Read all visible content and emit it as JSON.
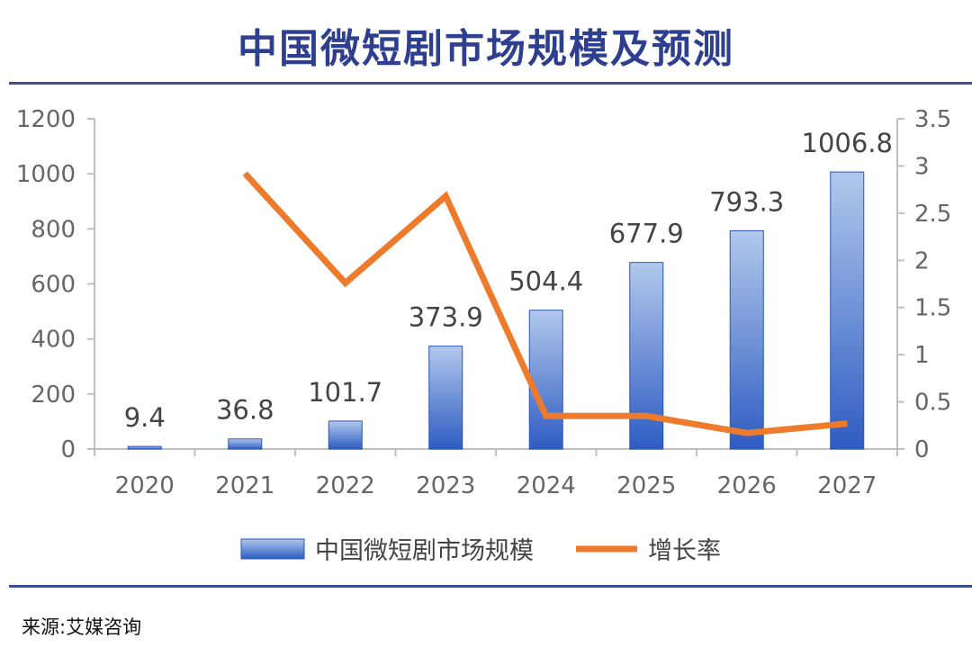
{
  "title": "中国微短剧市场规模及预测",
  "source": "来源:艾媒咨询",
  "colors": {
    "title": "#2f3f8f",
    "bar_top": "#a9c2ea",
    "bar_bottom": "#2f5fc4",
    "line": "#ee7a2b",
    "rule": "#3d4f94"
  },
  "chart_data": {
    "type": "bar",
    "title": "中国微短剧市场规模及预测",
    "categories": [
      "2020",
      "2021",
      "2022",
      "2023",
      "2024",
      "2025",
      "2026",
      "2027"
    ],
    "series": [
      {
        "name": "中国微短剧市场规模",
        "type": "bar",
        "axis": "left",
        "values": [
          9.4,
          36.8,
          101.7,
          373.9,
          504.4,
          677.9,
          793.3,
          1006.8
        ],
        "labels": [
          "9.4",
          "36.8",
          "101.7",
          "373.9",
          "504.4",
          "677.9",
          "793.3",
          "1006.8"
        ]
      },
      {
        "name": "增长率",
        "type": "line",
        "axis": "right",
        "values": [
          null,
          2.92,
          1.76,
          2.68,
          0.35,
          0.35,
          0.17,
          0.27
        ]
      }
    ],
    "y_left": {
      "min": 0,
      "max": 1200,
      "ticks": [
        "0",
        "200",
        "400",
        "600",
        "800",
        "1000",
        "1200"
      ]
    },
    "y_right": {
      "min": 0,
      "max": 3.5,
      "ticks": [
        "0",
        "0.5",
        "1",
        "1.5",
        "2",
        "2.5",
        "3",
        "3.5"
      ]
    },
    "grid": false,
    "legend_position": "bottom"
  }
}
